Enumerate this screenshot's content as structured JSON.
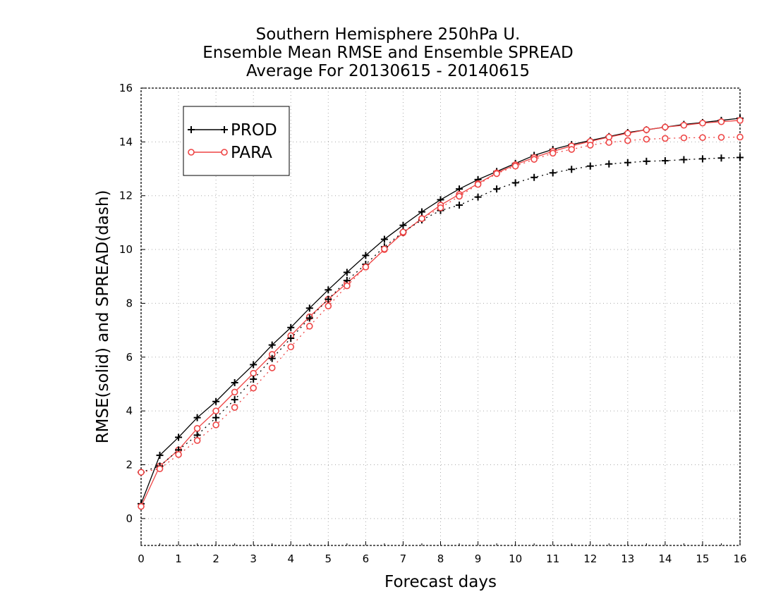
{
  "title_lines": [
    "Southern Hemisphere 250hPa U.",
    "Ensemble Mean RMSE and Ensemble SPREAD",
    "Average For 20130615 - 20140615"
  ],
  "chart_data": {
    "type": "line",
    "title": "Southern Hemisphere 250hPa U. Ensemble Mean RMSE and Ensemble SPREAD Average For 20130615 - 20140615",
    "xlabel": "Forecast days",
    "ylabel": "RMSE(solid) and SPREAD(dash)",
    "xlim": [
      0,
      16
    ],
    "ylim": [
      -1,
      16
    ],
    "xticks": [
      0,
      1,
      2,
      3,
      4,
      5,
      6,
      7,
      8,
      9,
      10,
      11,
      12,
      13,
      14,
      15,
      16
    ],
    "yticks": [
      0,
      2,
      4,
      6,
      8,
      10,
      12,
      14,
      16
    ],
    "grid": true,
    "legend_position": "top-left",
    "x": [
      0,
      0.5,
      1,
      1.5,
      2,
      2.5,
      3,
      3.5,
      4,
      4.5,
      5,
      5.5,
      6,
      6.5,
      7,
      7.5,
      8,
      8.5,
      9,
      9.5,
      10,
      10.5,
      11,
      11.5,
      12,
      12.5,
      13,
      13.5,
      14,
      14.5,
      15,
      15.5,
      16
    ],
    "series": [
      {
        "name": "PROD",
        "metric": "RMSE",
        "style": "solid",
        "marker": "plus",
        "color": "#000000",
        "values": [
          0.55,
          2.35,
          3.02,
          3.75,
          4.35,
          5.05,
          5.72,
          6.45,
          7.1,
          7.82,
          8.5,
          9.15,
          9.78,
          10.38,
          10.9,
          11.4,
          11.85,
          12.25,
          12.6,
          12.9,
          13.2,
          13.5,
          13.72,
          13.9,
          14.05,
          14.2,
          14.35,
          14.45,
          14.55,
          14.65,
          14.72,
          14.8,
          14.88
        ]
      },
      {
        "name": "PARA",
        "metric": "RMSE",
        "style": "solid",
        "marker": "circle",
        "color": "#ee4444",
        "values": [
          0.45,
          1.95,
          2.55,
          3.35,
          4.0,
          4.7,
          5.4,
          6.1,
          6.8,
          7.5,
          8.15,
          8.75,
          9.35,
          10.0,
          10.62,
          11.15,
          11.65,
          12.05,
          12.45,
          12.85,
          13.15,
          13.42,
          13.65,
          13.85,
          14.02,
          14.18,
          14.32,
          14.45,
          14.55,
          14.62,
          14.7,
          14.75,
          14.8
        ]
      },
      {
        "name": "PROD",
        "metric": "SPREAD",
        "style": "dash",
        "marker": "plus",
        "color": "#000000",
        "values": [
          1.72,
          1.95,
          2.55,
          3.1,
          3.75,
          4.42,
          5.18,
          5.95,
          6.7,
          7.45,
          8.15,
          8.85,
          9.45,
          10.1,
          10.65,
          11.1,
          11.45,
          11.65,
          11.95,
          12.25,
          12.48,
          12.68,
          12.85,
          12.98,
          13.1,
          13.18,
          13.23,
          13.28,
          13.3,
          13.34,
          13.37,
          13.4,
          13.42
        ]
      },
      {
        "name": "PARA",
        "metric": "SPREAD",
        "style": "dash",
        "marker": "circle",
        "color": "#ee4444",
        "values": [
          1.72,
          1.85,
          2.38,
          2.9,
          3.48,
          4.13,
          4.85,
          5.6,
          6.38,
          7.15,
          7.9,
          8.65,
          9.35,
          10.02,
          10.65,
          11.15,
          11.55,
          11.98,
          12.42,
          12.82,
          13.1,
          13.35,
          13.58,
          13.72,
          13.88,
          13.98,
          14.05,
          14.1,
          14.13,
          14.15,
          14.16,
          14.17,
          14.18
        ]
      }
    ],
    "legend": [
      {
        "label": "PROD",
        "marker": "plus",
        "color": "#000000"
      },
      {
        "label": "PARA",
        "marker": "circle",
        "color": "#ee4444"
      }
    ]
  }
}
